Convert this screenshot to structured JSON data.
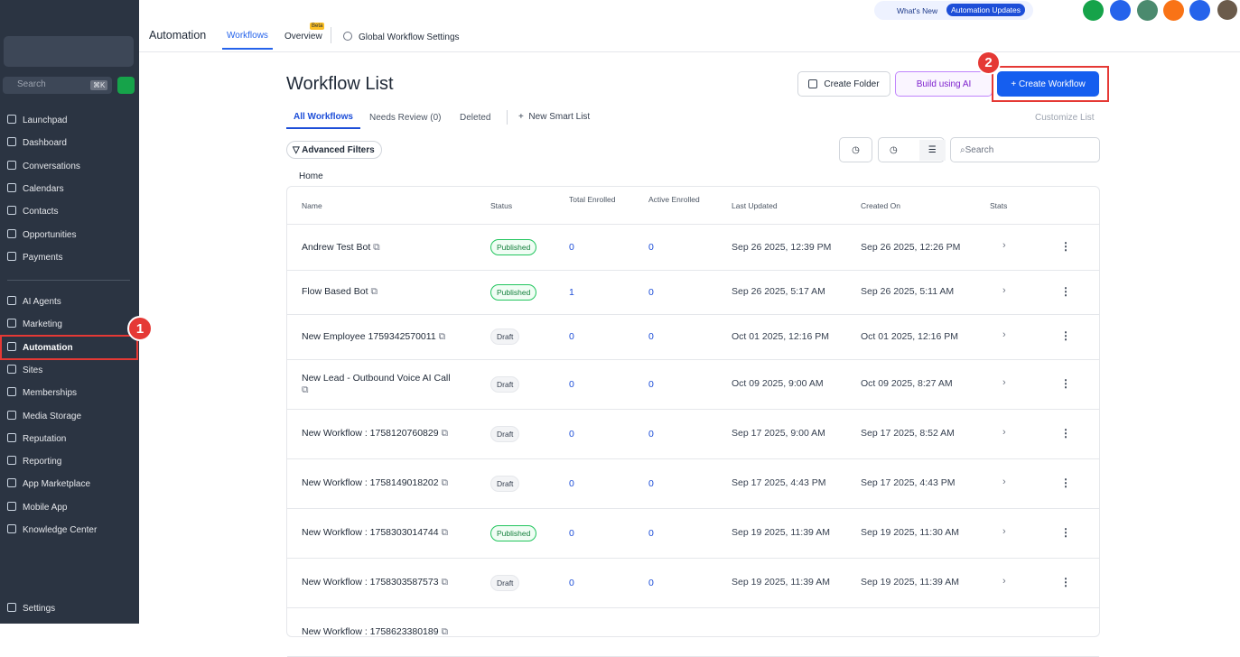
{
  "sidebar": {
    "search": "Search",
    "shortcut": "⌘K",
    "nav_top": [
      "Launchpad",
      "Dashboard",
      "Conversations",
      "Calendars",
      "Contacts",
      "Opportunities",
      "Payments"
    ],
    "nav_bottom": [
      "AI Agents",
      "Marketing",
      "Automation",
      "Sites",
      "Memberships",
      "Media Storage",
      "Reputation",
      "Reporting",
      "App Marketplace",
      "Mobile App",
      "Knowledge Center"
    ],
    "settings": "Settings"
  },
  "topbar": {
    "title": "Automation",
    "tabs": [
      "Workflows",
      "Overview"
    ],
    "beta": "Beta",
    "global_settings": "Global Workflow Settings",
    "whats_new": "What's New",
    "updates": "Automation Updates"
  },
  "page": {
    "title": "Workflow List",
    "create_folder": "Create Folder",
    "build_ai": "Build using AI",
    "create_workflow": "+ Create Workflow",
    "tabs": [
      "All Workflows",
      "Needs Review (0)",
      "Deleted"
    ],
    "new_smart_list": "New Smart List",
    "customize": "Customize List",
    "advanced_filters": "Advanced Filters",
    "search": "Search",
    "breadcrumb": "Home"
  },
  "table": {
    "columns": [
      "Name",
      "Status",
      "Total Enrolled",
      "Active Enrolled",
      "Last Updated",
      "Created On",
      "Stats"
    ],
    "rows": [
      [
        "Andrew Test Bot",
        "Published",
        "0",
        "0",
        "Sep 26 2025, 12:39 PM",
        "Sep 26 2025, 12:26 PM"
      ],
      [
        "Flow Based Bot",
        "Published",
        "1",
        "0",
        "Sep 26 2025, 5:17 AM",
        "Sep 26 2025, 5:11 AM"
      ],
      [
        "New Employee 1759342570011",
        "Draft",
        "0",
        "0",
        "Oct 01 2025, 12:16 PM",
        "Oct 01 2025, 12:16 PM"
      ],
      [
        "New Lead - Outbound Voice AI Call",
        "Draft",
        "0",
        "0",
        "Oct 09 2025, 9:00 AM",
        "Oct 09 2025, 8:27 AM"
      ],
      [
        "New Workflow : 1758120760829",
        "Draft",
        "0",
        "0",
        "Sep 17 2025, 9:00 AM",
        "Sep 17 2025, 8:52 AM"
      ],
      [
        "New Workflow : 1758149018202",
        "Draft",
        "0",
        "0",
        "Sep 17 2025, 4:43 PM",
        "Sep 17 2025, 4:43 PM"
      ],
      [
        "New Workflow : 1758303014744",
        "Published",
        "0",
        "0",
        "Sep 19 2025, 11:39 AM",
        "Sep 19 2025, 11:30 AM"
      ],
      [
        "New Workflow : 1758303587573",
        "Draft",
        "0",
        "0",
        "Sep 19 2025, 11:39 AM",
        "Sep 19 2025, 11:39 AM"
      ],
      [
        "New Workflow : 1758623380189"
      ]
    ]
  },
  "annotations": [
    "1",
    "2"
  ]
}
